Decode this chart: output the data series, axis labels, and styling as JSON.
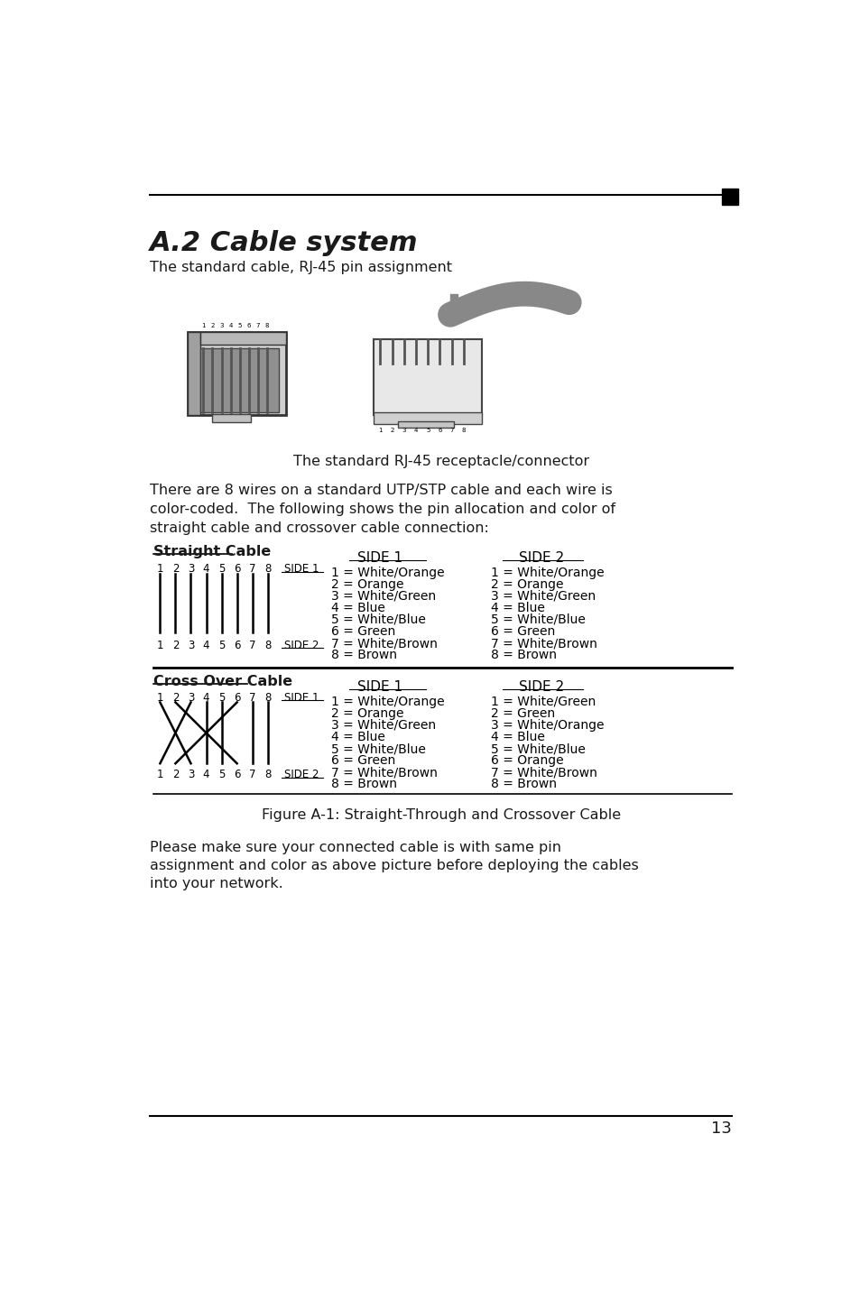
{
  "title": "A.2 Cable system",
  "subtitle": "The standard cable, RJ-45 pin assignment",
  "rj45_caption": "The standard RJ-45 receptacle/connector",
  "line1": "There are 8 wires on a standard UTP/STP cable and each wire is",
  "line2": "color-coded.  The following shows the pin allocation and color of",
  "line3": "straight cable and crossover cable connection:",
  "straight_label": "Straight Cable",
  "crossover_label": "Cross Over Cable",
  "side1_header": "SIDE 1",
  "side2_header": "SIDE 2",
  "straight_side1": [
    "1 = White/Orange",
    "2 = Orange",
    "3 = White/Green",
    "4 = Blue",
    "5 = White/Blue",
    "6 = Green",
    "7 = White/Brown",
    "8 = Brown"
  ],
  "straight_side2": [
    "1 = White/Orange",
    "2 = Orange",
    "3 = White/Green",
    "4 = Blue",
    "5 = White/Blue",
    "6 = Green",
    "7 = White/Brown",
    "8 = Brown"
  ],
  "crossover_side1": [
    "1 = White/Orange",
    "2 = Orange",
    "3 = White/Green",
    "4 = Blue",
    "5 = White/Blue",
    "6 = Green",
    "7 = White/Brown",
    "8 = Brown"
  ],
  "crossover_side2": [
    "1 = White/Green",
    "2 = Green",
    "3 = White/Orange",
    "4 = Blue",
    "5 = White/Blue",
    "6 = Orange",
    "7 = White/Brown",
    "8 = Brown"
  ],
  "figure_caption": "Figure A-1: Straight-Through and Crossover Cable",
  "footer_line1": "Please make sure your connected cable is with same pin",
  "footer_line2": "assignment and color as above picture before deploying the cables",
  "footer_line3": "into your network.",
  "page_number": "13",
  "bg_color": "#ffffff",
  "text_color": "#1a1a1a"
}
